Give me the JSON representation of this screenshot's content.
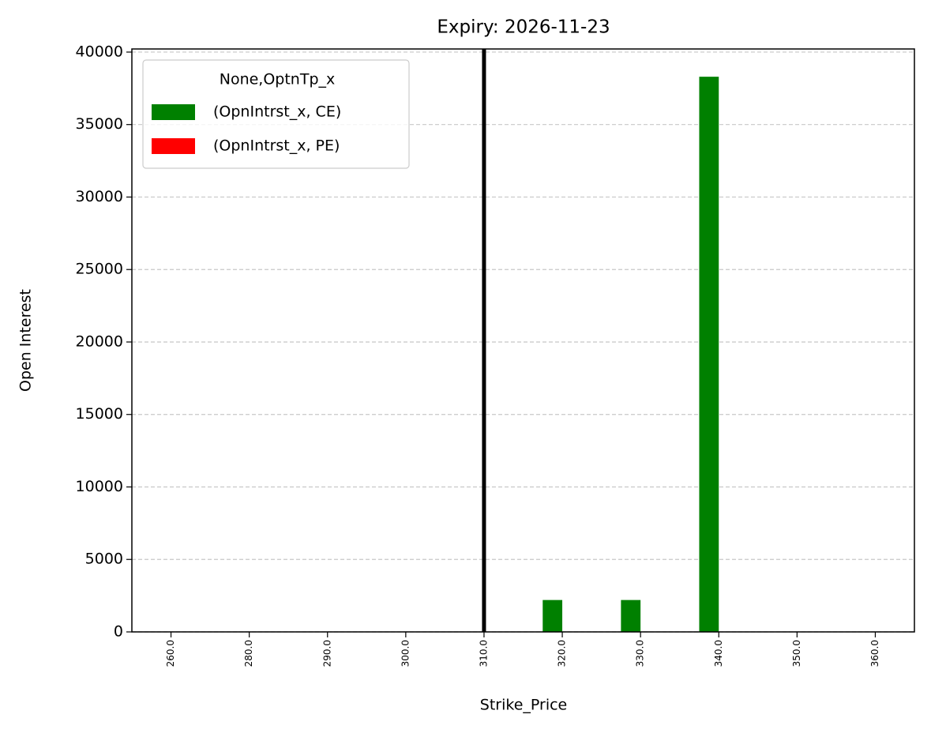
{
  "chart_data": {
    "type": "bar",
    "title": "Expiry: 2026-11-23",
    "xlabel": "Strike_Price",
    "ylabel": "Open Interest",
    "categories": [
      "260.0",
      "280.0",
      "290.0",
      "300.0",
      "310.0",
      "320.0",
      "330.0",
      "340.0",
      "350.0",
      "360.0"
    ],
    "series": [
      {
        "name": "(OpnIntrst_x, CE)",
        "color": "#008000",
        "values": [
          0,
          0,
          0,
          0,
          0,
          2200,
          2200,
          38300,
          0,
          0
        ]
      },
      {
        "name": "(OpnIntrst_x, PE)",
        "color": "#ff0000",
        "values": [
          0,
          0,
          0,
          0,
          0,
          0,
          0,
          0,
          0,
          0
        ]
      }
    ],
    "legend_title": "None,OptnTp_x",
    "legend": "upper left",
    "vline": "310.0",
    "ylim": [
      0,
      40215
    ],
    "yticks": [
      0,
      5000,
      10000,
      15000,
      20000,
      25000,
      30000,
      35000,
      40000
    ],
    "grid": true
  }
}
